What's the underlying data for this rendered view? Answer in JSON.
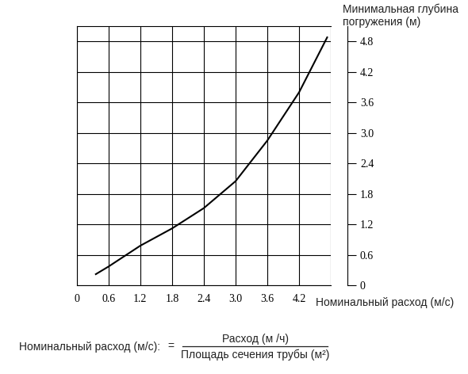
{
  "chart_data": {
    "type": "line",
    "x_label": "Номинальный расход (м/с)",
    "y_label": "Минимальная глубина\nпогружения (м)",
    "x": [
      0.36,
      0.6,
      1.2,
      1.8,
      2.4,
      3.0,
      3.6,
      4.2,
      4.73
    ],
    "values": [
      0.22,
      0.37,
      0.78,
      1.12,
      1.52,
      2.05,
      2.85,
      3.8,
      4.88
    ],
    "color": "#000000",
    "xlim": [
      0,
      4.8
    ],
    "xticks": [
      0,
      0.6,
      1.2,
      1.8,
      2.4,
      3.0,
      3.6,
      4.2
    ],
    "ylim": [
      0,
      5.1
    ],
    "yticks": [
      0,
      0.6,
      1.2,
      1.8,
      2.4,
      3.0,
      3.6,
      4.2,
      4.8
    ],
    "grid": true,
    "annotation": {
      "lhs": "Номинальный расход (м/с):",
      "equals": "=",
      "numerator": "Расход (м /ч)",
      "denominator": "Площадь сечения трубы (м²)"
    }
  }
}
